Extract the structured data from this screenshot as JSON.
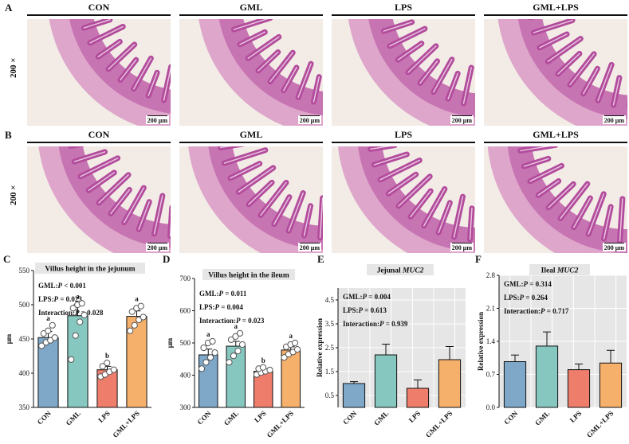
{
  "figure": {
    "rows": [
      {
        "letter": "A",
        "magnification": "200 ×",
        "groups": [
          "CON",
          "GML",
          "LPS",
          "GML+LPS"
        ],
        "scale_bar": "200 μm"
      },
      {
        "letter": "B",
        "magnification": "200 ×",
        "groups": [
          "CON",
          "GML",
          "LPS",
          "GML+LPS"
        ],
        "scale_bar": "200 μm"
      }
    ],
    "colors": {
      "CON": "#7ea7c8",
      "GML": "#86c8bf",
      "LPS": "#ee7d6b",
      "GML+LPS": "#f5b06c",
      "panel_bg": "#e6e6e6",
      "tissue": "#b24b9c"
    }
  },
  "chart_data": [
    {
      "letter": "C",
      "type": "bar",
      "title": "Villus height in the jejunum",
      "ylabel": "μm",
      "categories": [
        "CON",
        "GML",
        "LPS",
        "GML+LPS"
      ],
      "values": [
        452,
        484,
        405,
        483
      ],
      "errors": [
        9,
        16,
        5,
        8
      ],
      "letters": [
        "a",
        "a",
        "b",
        "a"
      ],
      "points": [
        [
          440,
          445,
          448,
          452,
          458,
          462,
          470
        ],
        [
          420,
          455,
          475,
          485,
          495,
          500,
          502
        ],
        [
          395,
          398,
          402,
          405,
          410,
          415
        ],
        [
          462,
          470,
          478,
          482,
          490,
          495,
          498
        ]
      ],
      "ylim": [
        350,
        550
      ],
      "yticks": [
        350,
        400,
        450,
        500,
        550
      ],
      "stats": [
        {
          "label": "GML:",
          "p": "P",
          "value": " < 0.001"
        },
        {
          "label": "LPS:",
          "p": "P",
          "value": " = 0.023"
        },
        {
          "label": "Interaction:",
          "p": "P",
          "value": " = 0.028"
        }
      ],
      "gridded": false
    },
    {
      "letter": "D",
      "type": "bar",
      "title": "Villus height in the ileum",
      "ylabel": "μm",
      "categories": [
        "CON",
        "GML",
        "LPS",
        "GML+LPS"
      ],
      "values": [
        463,
        490,
        412,
        478
      ],
      "errors": [
        18,
        15,
        5,
        10
      ],
      "letters": [
        "a",
        "a",
        "b",
        "a"
      ],
      "points": [
        [
          420,
          440,
          455,
          470,
          485,
          500,
          505
        ],
        [
          440,
          460,
          475,
          495,
          510,
          520,
          530
        ],
        [
          402,
          408,
          412,
          416,
          420,
          424
        ],
        [
          455,
          465,
          472,
          480,
          488,
          495,
          500
        ]
      ],
      "ylim": [
        300,
        700
      ],
      "yticks": [
        300,
        400,
        500,
        600,
        700
      ],
      "stats": [
        {
          "label": "GML:",
          "p": "P",
          "value": " = 0.011"
        },
        {
          "label": "LPS:",
          "p": "P",
          "value": " = 0.004"
        },
        {
          "label": "Interaction:",
          "p": "P",
          "value": " = 0.023"
        }
      ],
      "gridded": false
    },
    {
      "letter": "E",
      "type": "bar",
      "title_prefix": "Jejunal ",
      "title_gene": "MUC2",
      "ylabel": "Relative expression",
      "categories": [
        "CON",
        "GML",
        "LPS",
        "GML+LPS"
      ],
      "values": [
        1.0,
        2.2,
        0.8,
        2.0
      ],
      "errors": [
        0.08,
        0.45,
        0.35,
        0.55
      ],
      "ylim": [
        0,
        5
      ],
      "yticks": [
        0.5,
        1.5,
        2.5,
        3.5,
        4.5
      ],
      "stats": [
        {
          "label": "GML:",
          "p": "P",
          "value": " = 0.004"
        },
        {
          "label": "LPS:",
          "p": "P",
          "value": " = 0.613"
        },
        {
          "label": "Interaction:",
          "p": "P",
          "value": " = 0.939"
        }
      ],
      "gridded": true
    },
    {
      "letter": "F",
      "type": "bar",
      "title_prefix": "Ileal ",
      "title_gene": "MUC2",
      "ylabel": "Relative expression",
      "categories": [
        "CON",
        "GML",
        "LPS",
        "GML+LPS"
      ],
      "values": [
        0.97,
        1.3,
        0.8,
        0.94
      ],
      "errors": [
        0.14,
        0.3,
        0.12,
        0.27
      ],
      "ylim": [
        0,
        2.8
      ],
      "yticks": [
        0.0,
        0.7,
        1.4,
        2.1,
        2.8
      ],
      "stats": [
        {
          "label": "GML:",
          "p": "P",
          "value": " = 0.314"
        },
        {
          "label": "LPS:",
          "p": "P",
          "value": " = 0.264"
        },
        {
          "label": "Interaction:",
          "p": "P",
          "value": " = 0.717"
        }
      ],
      "gridded": true
    }
  ]
}
